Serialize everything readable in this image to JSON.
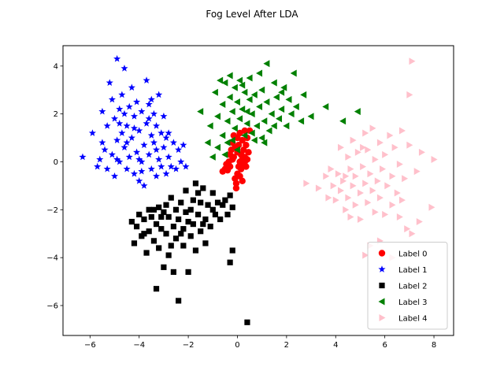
{
  "chart_data": {
    "type": "scatter",
    "title": "Fog Level After LDA",
    "xlabel": "",
    "ylabel": "",
    "xlim": [
      -7.1,
      8.8
    ],
    "ylim": [
      -7.25,
      4.85
    ],
    "xticks": [
      -6,
      -4,
      -2,
      0,
      2,
      4,
      6,
      8
    ],
    "yticks": [
      4,
      2,
      0,
      -2,
      -4,
      -6
    ],
    "grid": false,
    "legend_position": "lower-right",
    "series": [
      {
        "name": "Label 0",
        "marker": "circle",
        "color": "#ff0000",
        "points": [
          [
            -0.6,
            -0.4
          ],
          [
            -0.5,
            -0.3
          ],
          [
            -0.45,
            -0.1
          ],
          [
            -0.4,
            -0.35
          ],
          [
            -0.35,
            0.0
          ],
          [
            -0.3,
            -0.2
          ],
          [
            -0.3,
            0.3
          ],
          [
            -0.25,
            0.5
          ],
          [
            -0.2,
            0.1
          ],
          [
            -0.2,
            0.8
          ],
          [
            -0.15,
            0.2
          ],
          [
            -0.15,
            1.1
          ],
          [
            -0.1,
            -0.7
          ],
          [
            -0.1,
            0.6
          ],
          [
            -0.05,
            -0.9
          ],
          [
            0.0,
            -0.5
          ],
          [
            0.0,
            0.4
          ],
          [
            0.05,
            -0.2
          ],
          [
            0.05,
            0.7
          ],
          [
            0.1,
            0.0
          ],
          [
            0.1,
            -0.6
          ],
          [
            0.15,
            0.3
          ],
          [
            0.15,
            -0.3
          ],
          [
            0.2,
            0.1
          ],
          [
            0.2,
            0.9
          ],
          [
            0.25,
            -0.1
          ],
          [
            0.25,
            0.5
          ],
          [
            0.3,
            0.2
          ],
          [
            0.3,
            1.3
          ],
          [
            0.35,
            -0.2
          ],
          [
            0.35,
            0.7
          ],
          [
            0.4,
            0.1
          ],
          [
            0.4,
            1.0
          ],
          [
            0.45,
            0.4
          ],
          [
            0.5,
            1.3
          ],
          [
            0.0,
            1.0
          ],
          [
            0.1,
            1.2
          ],
          [
            -0.05,
            -1.1
          ],
          [
            0.2,
            -0.8
          ],
          [
            0.3,
            0.0
          ]
        ]
      },
      {
        "name": "Label 1",
        "marker": "star",
        "color": "#0000ff",
        "points": [
          [
            -6.3,
            0.2
          ],
          [
            -5.9,
            1.2
          ],
          [
            -5.7,
            -0.2
          ],
          [
            -5.5,
            0.8
          ],
          [
            -5.5,
            2.1
          ],
          [
            -5.4,
            0.5
          ],
          [
            -5.3,
            1.5
          ],
          [
            -5.3,
            -0.3
          ],
          [
            -5.2,
            3.3
          ],
          [
            -5.1,
            2.6
          ],
          [
            -5.1,
            0.3
          ],
          [
            -5.0,
            1.8
          ],
          [
            -5.0,
            -0.6
          ],
          [
            -4.9,
            4.3
          ],
          [
            -4.9,
            0.9
          ],
          [
            -4.8,
            2.2
          ],
          [
            -4.8,
            0.0
          ],
          [
            -4.7,
            1.2
          ],
          [
            -4.7,
            2.8
          ],
          [
            -4.6,
            0.6
          ],
          [
            -4.6,
            3.9
          ],
          [
            -4.5,
            -0.3
          ],
          [
            -4.5,
            1.5
          ],
          [
            -4.4,
            2.3
          ],
          [
            -4.4,
            0.2
          ],
          [
            -4.3,
            1.0
          ],
          [
            -4.3,
            3.1
          ],
          [
            -4.2,
            -0.5
          ],
          [
            -4.2,
            1.9
          ],
          [
            -4.1,
            0.4
          ],
          [
            -4.1,
            2.5
          ],
          [
            -4.0,
            -0.8
          ],
          [
            -4.0,
            1.3
          ],
          [
            -3.9,
            0.0
          ],
          [
            -3.9,
            2.1
          ],
          [
            -3.8,
            0.7
          ],
          [
            -3.8,
            -1.0
          ],
          [
            -3.7,
            1.6
          ],
          [
            -3.7,
            3.4
          ],
          [
            -3.6,
            0.3
          ],
          [
            -3.6,
            2.4
          ],
          [
            -3.5,
            -0.3
          ],
          [
            -3.5,
            1.1
          ],
          [
            -3.4,
            0.8
          ],
          [
            -3.4,
            2.0
          ],
          [
            -3.3,
            -0.6
          ],
          [
            -3.3,
            1.5
          ],
          [
            -3.2,
            0.1
          ],
          [
            -3.2,
            2.8
          ],
          [
            -3.1,
            1.2
          ],
          [
            -3.1,
            -0.2
          ],
          [
            -3.0,
            0.6
          ],
          [
            -2.9,
            -0.5
          ],
          [
            -2.9,
            1.0
          ],
          [
            -2.8,
            0.2
          ],
          [
            -2.7,
            -0.2
          ],
          [
            -2.6,
            0.8
          ],
          [
            -2.5,
            -0.3
          ],
          [
            -2.4,
            0.5
          ],
          [
            -2.3,
            0.0
          ],
          [
            -2.2,
            0.7
          ],
          [
            -2.1,
            -0.2
          ],
          [
            -4.8,
            1.6
          ],
          [
            -4.5,
            0.8
          ],
          [
            -4.2,
            1.4
          ],
          [
            -4.0,
            0.1
          ],
          [
            -3.6,
            1.8
          ],
          [
            -3.3,
            0.5
          ],
          [
            -3.0,
            1.9
          ],
          [
            -2.8,
            1.2
          ],
          [
            -4.9,
            0.1
          ],
          [
            -4.6,
            2.0
          ],
          [
            -3.9,
            -0.4
          ],
          [
            -3.5,
            2.6
          ],
          [
            -5.6,
            0.1
          ]
        ]
      },
      {
        "name": "Label 2",
        "marker": "square",
        "color": "#000000",
        "points": [
          [
            -4.3,
            -2.5
          ],
          [
            -4.2,
            -3.4
          ],
          [
            -4.1,
            -2.7
          ],
          [
            -4.0,
            -2.2
          ],
          [
            -3.9,
            -3.1
          ],
          [
            -3.8,
            -2.4
          ],
          [
            -3.7,
            -3.8
          ],
          [
            -3.6,
            -2.0
          ],
          [
            -3.6,
            -2.9
          ],
          [
            -3.5,
            -2.3
          ],
          [
            -3.4,
            -3.3
          ],
          [
            -3.3,
            -5.3
          ],
          [
            -3.3,
            -2.6
          ],
          [
            -3.2,
            -1.9
          ],
          [
            -3.2,
            -3.6
          ],
          [
            -3.1,
            -2.8
          ],
          [
            -3.0,
            -2.1
          ],
          [
            -3.0,
            -4.4
          ],
          [
            -2.9,
            -3.0
          ],
          [
            -2.8,
            -2.3
          ],
          [
            -2.8,
            -3.9
          ],
          [
            -2.7,
            -1.5
          ],
          [
            -2.6,
            -2.7
          ],
          [
            -2.6,
            -4.6
          ],
          [
            -2.5,
            -2.0
          ],
          [
            -2.5,
            -3.2
          ],
          [
            -2.4,
            -5.8
          ],
          [
            -2.4,
            -2.4
          ],
          [
            -2.3,
            -1.7
          ],
          [
            -2.2,
            -3.5
          ],
          [
            -2.2,
            -2.8
          ],
          [
            -2.1,
            -1.2
          ],
          [
            -2.0,
            -2.5
          ],
          [
            -2.0,
            -4.6
          ],
          [
            -1.9,
            -2.0
          ],
          [
            -1.9,
            -3.1
          ],
          [
            -1.8,
            -1.6
          ],
          [
            -1.8,
            -2.6
          ],
          [
            -1.7,
            -0.9
          ],
          [
            -1.7,
            -3.7
          ],
          [
            -1.6,
            -2.2
          ],
          [
            -1.5,
            -1.7
          ],
          [
            -1.5,
            -2.9
          ],
          [
            -1.4,
            -1.1
          ],
          [
            -1.3,
            -2.4
          ],
          [
            -1.3,
            -3.4
          ],
          [
            -1.2,
            -1.8
          ],
          [
            -1.1,
            -2.7
          ],
          [
            -1.0,
            -1.3
          ],
          [
            -0.9,
            -2.2
          ],
          [
            -0.8,
            -1.7
          ],
          [
            -0.7,
            -2.4
          ],
          [
            -0.5,
            -1.6
          ],
          [
            -0.4,
            -2.2
          ],
          [
            -0.3,
            -1.4
          ],
          [
            -0.2,
            -1.9
          ],
          [
            -0.2,
            -3.7
          ],
          [
            -0.3,
            -4.2
          ],
          [
            0.4,
            -6.7
          ],
          [
            -2.7,
            -3.5
          ],
          [
            -3.1,
            -2.3
          ],
          [
            -2.9,
            -1.8
          ],
          [
            -2.3,
            -3.0
          ],
          [
            -1.6,
            -1.3
          ],
          [
            -1.0,
            -2.0
          ],
          [
            -3.8,
            -3.0
          ],
          [
            -2.1,
            -2.1
          ],
          [
            -1.4,
            -2.6
          ],
          [
            -0.6,
            -1.8
          ],
          [
            -3.4,
            -2.0
          ]
        ]
      },
      {
        "name": "Label 3",
        "marker": "triangle-left",
        "color": "#008000",
        "points": [
          [
            -1.5,
            2.1
          ],
          [
            -1.2,
            0.8
          ],
          [
            -1.1,
            1.5
          ],
          [
            -1.0,
            0.2
          ],
          [
            -0.9,
            2.9
          ],
          [
            -0.8,
            1.9
          ],
          [
            -0.8,
            0.6
          ],
          [
            -0.7,
            3.4
          ],
          [
            -0.6,
            1.1
          ],
          [
            -0.6,
            2.4
          ],
          [
            -0.5,
            3.3
          ],
          [
            -0.5,
            0.3
          ],
          [
            -0.4,
            1.7
          ],
          [
            -0.3,
            2.7
          ],
          [
            -0.3,
            3.6
          ],
          [
            -0.2,
            0.9
          ],
          [
            -0.2,
            2.1
          ],
          [
            -0.1,
            1.4
          ],
          [
            -0.1,
            3.1
          ],
          [
            0.0,
            2.5
          ],
          [
            0.0,
            0.5
          ],
          [
            0.1,
            1.8
          ],
          [
            0.1,
            3.4
          ],
          [
            0.2,
            2.2
          ],
          [
            0.3,
            1.1
          ],
          [
            0.3,
            2.9
          ],
          [
            0.4,
            1.6
          ],
          [
            0.5,
            2.6
          ],
          [
            0.5,
            3.5
          ],
          [
            0.6,
            1.2
          ],
          [
            0.6,
            2.0
          ],
          [
            0.7,
            0.9
          ],
          [
            0.7,
            2.8
          ],
          [
            0.8,
            1.5
          ],
          [
            0.9,
            2.3
          ],
          [
            1.0,
            1.0
          ],
          [
            1.0,
            3.0
          ],
          [
            1.1,
            1.7
          ],
          [
            1.2,
            2.5
          ],
          [
            1.2,
            4.1
          ],
          [
            1.3,
            1.3
          ],
          [
            1.4,
            2.0
          ],
          [
            1.5,
            3.3
          ],
          [
            1.5,
            1.5
          ],
          [
            1.6,
            2.7
          ],
          [
            1.7,
            1.8
          ],
          [
            1.8,
            2.2
          ],
          [
            1.9,
            3.1
          ],
          [
            2.0,
            1.5
          ],
          [
            2.1,
            2.6
          ],
          [
            2.2,
            2.0
          ],
          [
            2.3,
            3.7
          ],
          [
            2.4,
            2.3
          ],
          [
            2.6,
            1.7
          ],
          [
            3.0,
            1.9
          ],
          [
            3.6,
            2.3
          ],
          [
            4.3,
            1.7
          ],
          [
            4.9,
            2.1
          ],
          [
            1.1,
            0.8
          ],
          [
            0.2,
            3.2
          ],
          [
            0.9,
            3.7
          ],
          [
            -0.4,
            0.8
          ],
          [
            1.8,
            2.9
          ],
          [
            0.4,
            2.1
          ],
          [
            2.7,
            2.8
          ]
        ]
      },
      {
        "name": "Label 4",
        "marker": "triangle-right",
        "color": "#ffc0cb",
        "points": [
          [
            2.8,
            -0.9
          ],
          [
            3.3,
            -1.1
          ],
          [
            3.6,
            -0.6
          ],
          [
            3.7,
            -1.5
          ],
          [
            3.8,
            -0.3
          ],
          [
            3.9,
            -1.0
          ],
          [
            4.0,
            -1.6
          ],
          [
            4.1,
            -0.5
          ],
          [
            4.2,
            0.6
          ],
          [
            4.2,
            -1.2
          ],
          [
            4.3,
            -0.8
          ],
          [
            4.4,
            -2.0
          ],
          [
            4.5,
            0.2
          ],
          [
            4.5,
            -1.5
          ],
          [
            4.6,
            -0.3
          ],
          [
            4.6,
            -2.3
          ],
          [
            4.7,
            0.9
          ],
          [
            4.7,
            -1.0
          ],
          [
            4.8,
            -0.6
          ],
          [
            4.8,
            -1.8
          ],
          [
            4.9,
            0.4
          ],
          [
            5.0,
            -1.3
          ],
          [
            5.0,
            -2.4
          ],
          [
            5.1,
            -0.2
          ],
          [
            5.2,
            1.2
          ],
          [
            5.2,
            -0.9
          ],
          [
            5.3,
            -1.7
          ],
          [
            5.3,
            0.5
          ],
          [
            5.4,
            -0.5
          ],
          [
            5.5,
            1.4
          ],
          [
            5.5,
            -1.2
          ],
          [
            5.6,
            -2.1
          ],
          [
            5.6,
            0.1
          ],
          [
            5.7,
            -0.8
          ],
          [
            5.8,
            0.8
          ],
          [
            5.8,
            -1.5
          ],
          [
            5.9,
            -0.3
          ],
          [
            6.0,
            -2.2
          ],
          [
            6.0,
            0.3
          ],
          [
            6.1,
            -1.0
          ],
          [
            6.2,
            1.1
          ],
          [
            6.3,
            -0.6
          ],
          [
            6.3,
            -1.8
          ],
          [
            6.4,
            0.6
          ],
          [
            6.5,
            -1.3
          ],
          [
            6.6,
            -0.1
          ],
          [
            6.7,
            1.3
          ],
          [
            6.7,
            -1.6
          ],
          [
            6.8,
            -0.7
          ],
          [
            6.9,
            -2.8
          ],
          [
            7.0,
            0.7
          ],
          [
            7.0,
            2.8
          ],
          [
            7.1,
            -3.0
          ],
          [
            7.1,
            4.2
          ],
          [
            7.3,
            -0.4
          ],
          [
            7.4,
            -2.5
          ],
          [
            7.5,
            0.4
          ],
          [
            7.9,
            -1.9
          ],
          [
            8.0,
            0.1
          ],
          [
            5.2,
            -3.9
          ],
          [
            6.3,
            -4.0
          ],
          [
            5.4,
            -3.5
          ],
          [
            5.8,
            -3.3
          ],
          [
            4.4,
            -0.6
          ],
          [
            5.1,
            0.6
          ],
          [
            6.6,
            -2.3
          ]
        ]
      }
    ]
  }
}
